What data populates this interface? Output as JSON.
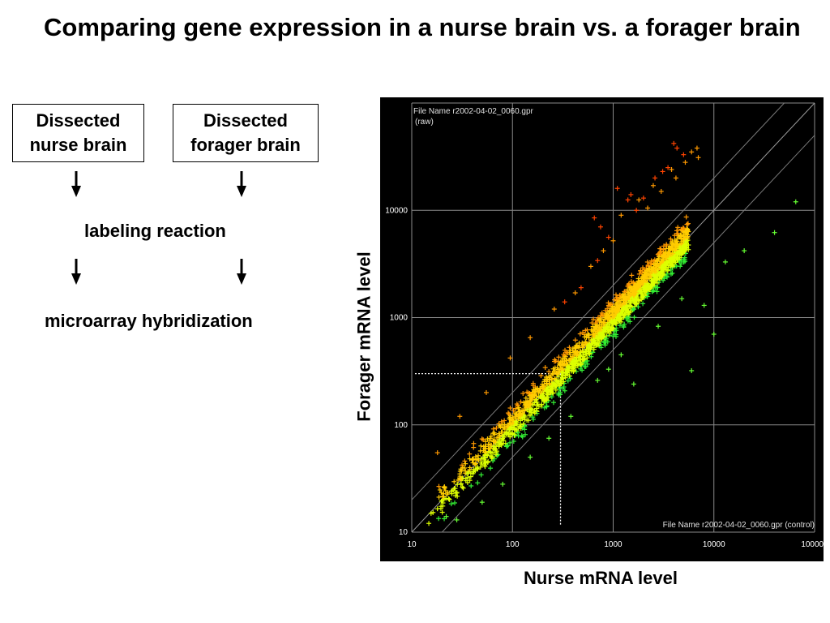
{
  "slide": {
    "title": "Comparing gene expression in a nurse brain vs. a forager brain"
  },
  "flow": {
    "box_nurse": "Dissected\nnurse brain",
    "box_forager": "Dissected\nforager brain",
    "step_labeling": "labeling reaction",
    "step_hybridization": "microarray hybridization"
  },
  "chart_data": {
    "type": "scatter",
    "title": "",
    "xlabel": "Nurse mRNA level",
    "ylabel": "Forager mRNA level",
    "x_scale": "log",
    "y_scale": "log",
    "xlim": [
      10,
      100000
    ],
    "ylim": [
      10,
      100000
    ],
    "grid": true,
    "background": "#000000",
    "x_ticks": [
      "10",
      "100",
      "1000",
      "10000",
      "100000"
    ],
    "y_ticks": [
      "10",
      "100",
      "1000",
      "10000"
    ],
    "annotation_top": "File Name r2002-04-02_0060.gpr",
    "annotation_top_sub": "(raw)",
    "annotation_bottom": "File Name r2002-04-02_0060.gpr  (control)",
    "guide_lines": [
      {
        "x": [
          10,
          100000
        ],
        "y": [
          10,
          100000
        ]
      },
      {
        "x": [
          10,
          50000
        ],
        "y": [
          20,
          100000
        ]
      },
      {
        "x": [
          20,
          100000
        ],
        "y": [
          10,
          50000
        ]
      }
    ],
    "reference_point": {
      "x": 300,
      "y": 300
    },
    "colors": {
      "up": "#ff4400",
      "mid_up": "#ff9900",
      "neutral": "#ffcc00",
      "mid_down": "#ddff00",
      "down": "#33ee33"
    },
    "series": [
      {
        "color": "#ff4400",
        "points": [
          [
            480,
            1900
          ],
          [
            650,
            8500
          ],
          [
            750,
            7000
          ],
          [
            1100,
            16000
          ],
          [
            1500,
            14000
          ],
          [
            2000,
            13000
          ],
          [
            2600,
            20000
          ],
          [
            3100,
            23000
          ],
          [
            4000,
            42000
          ],
          [
            4300,
            38000
          ],
          [
            3500,
            25000
          ],
          [
            5000,
            33000
          ],
          [
            1400,
            12500
          ],
          [
            1700,
            10000
          ],
          [
            900,
            5600
          ],
          [
            700,
            3400
          ],
          [
            330,
            1400
          ]
        ]
      },
      {
        "color": "#ff9900",
        "points": [
          [
            1200,
            9000
          ],
          [
            1800,
            12500
          ],
          [
            2500,
            17000
          ],
          [
            6000,
            35000
          ],
          [
            5200,
            28000
          ],
          [
            7000,
            31000
          ],
          [
            3000,
            15000
          ],
          [
            2200,
            10500
          ],
          [
            4200,
            20000
          ],
          [
            6800,
            38000
          ],
          [
            3800,
            24000
          ],
          [
            1000,
            5200
          ],
          [
            600,
            3000
          ],
          [
            800,
            4200
          ],
          [
            420,
            1700
          ],
          [
            260,
            1200
          ],
          [
            150,
            650
          ],
          [
            95,
            420
          ],
          [
            55,
            200
          ],
          [
            30,
            120
          ],
          [
            18,
            55
          ]
        ]
      },
      {
        "color": "#66ff33",
        "points": [
          [
            10000,
            700
          ],
          [
            6000,
            320
          ],
          [
            8000,
            1300
          ],
          [
            13000,
            3300
          ],
          [
            20000,
            4200
          ],
          [
            40000,
            6200
          ],
          [
            65000,
            12000
          ],
          [
            4800,
            1500
          ],
          [
            1600,
            240
          ],
          [
            2800,
            830
          ],
          [
            1200,
            450
          ],
          [
            900,
            330
          ],
          [
            700,
            260
          ],
          [
            380,
            120
          ],
          [
            230,
            75
          ],
          [
            150,
            50
          ],
          [
            80,
            28
          ],
          [
            50,
            19
          ],
          [
            28,
            13
          ],
          [
            22,
            14
          ]
        ]
      }
    ]
  }
}
